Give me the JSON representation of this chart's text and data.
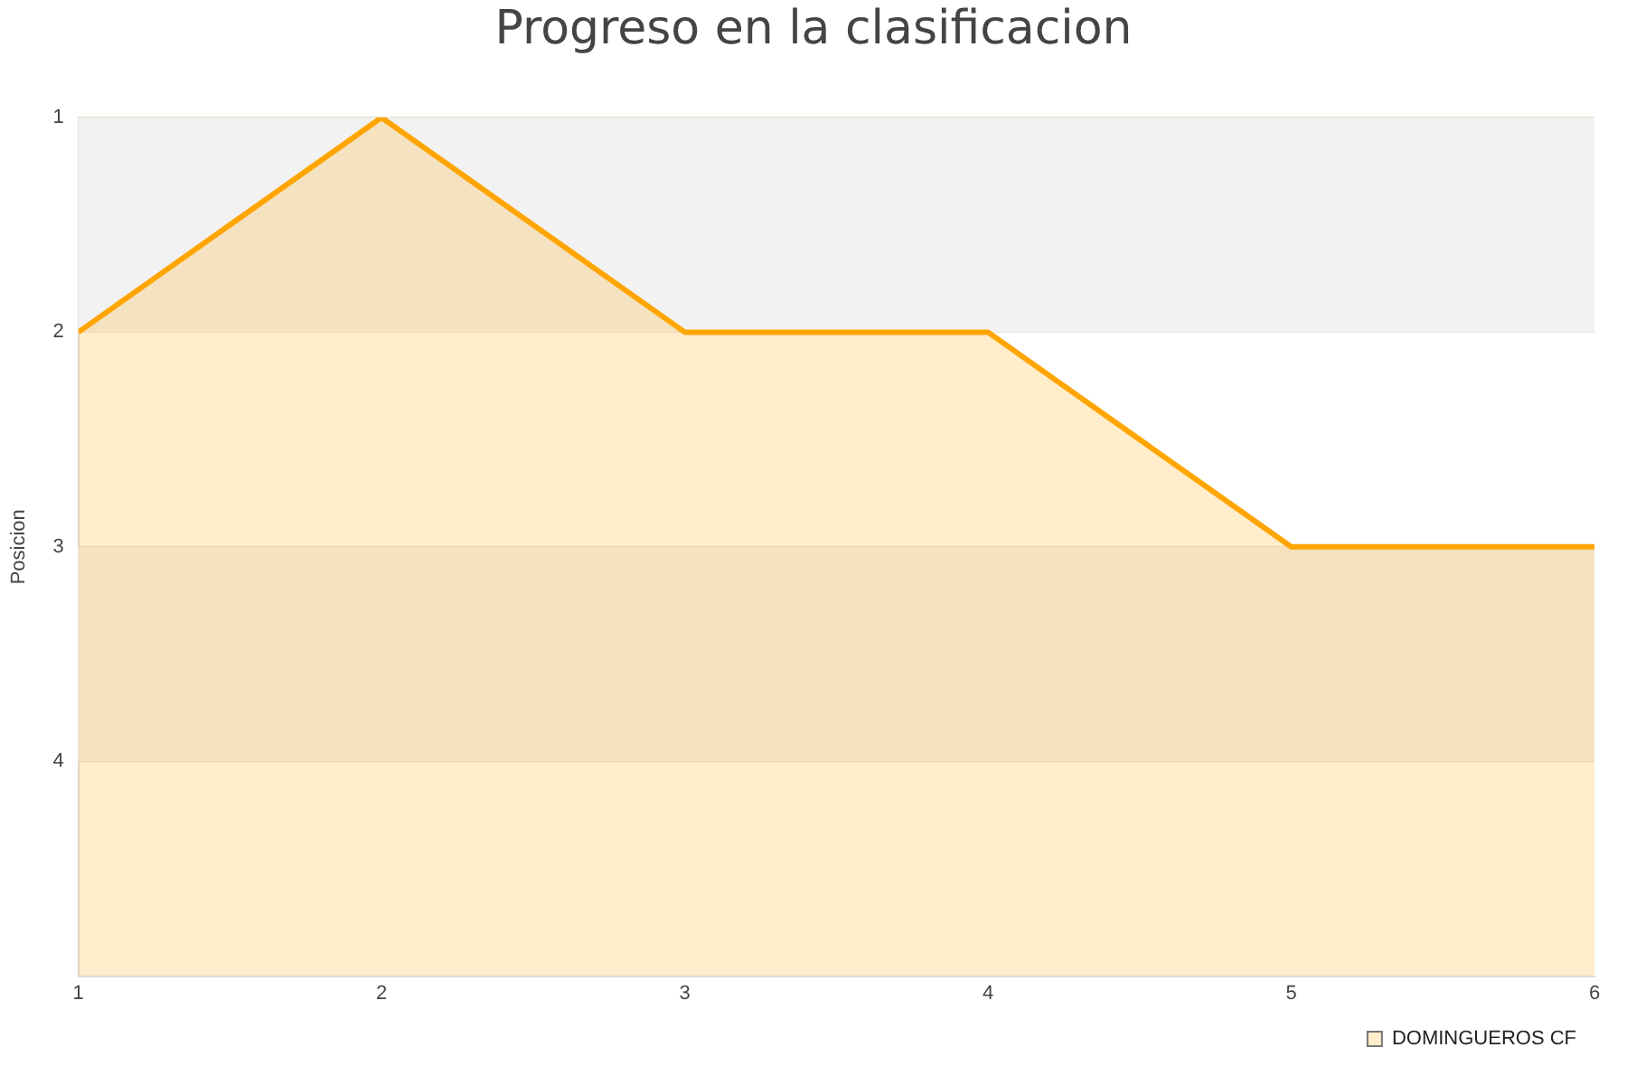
{
  "chart_data": {
    "type": "line",
    "title": "Progreso en la clasificacion",
    "ylabel": "Posicion",
    "x": [
      1,
      2,
      3,
      4,
      5,
      6
    ],
    "series": [
      {
        "name": "DOMINGUEROS CF",
        "color": "#ffa500",
        "values": [
          2,
          1,
          2,
          2,
          3,
          3
        ],
        "lower": [
          5,
          5,
          5,
          5,
          5,
          5
        ],
        "upper": [
          2,
          1,
          2,
          2,
          3,
          3
        ]
      }
    ],
    "xlim": [
      1,
      6
    ],
    "xticks": [
      1,
      2,
      3,
      4,
      5,
      6
    ],
    "ylim": [
      5,
      1
    ],
    "yticks": [
      1,
      2,
      3,
      4
    ],
    "bands": [
      {
        "axis": "y",
        "from": 1,
        "to": 2,
        "color": "#f2f2f2"
      },
      {
        "axis": "y",
        "from": 3,
        "to": 4,
        "color": "#f2f2f2"
      }
    ],
    "grid": "y",
    "legend": "bottom right",
    "marker": "none",
    "line_style": "solid"
  }
}
